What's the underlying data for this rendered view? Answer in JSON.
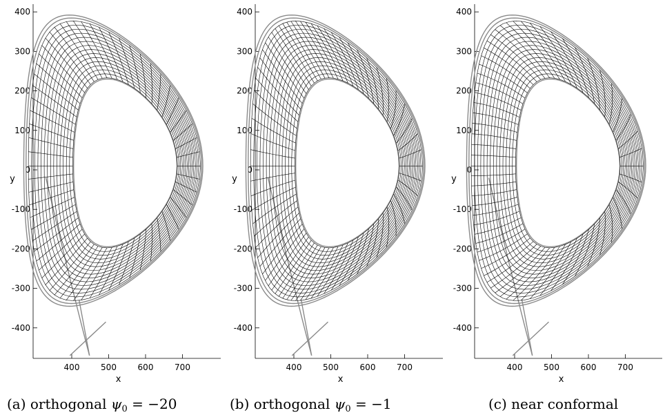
{
  "panels": [
    {
      "id": "a",
      "caption_prefix": "(a) orthogonal ",
      "caption_math": "ψ",
      "caption_sub": "0",
      "caption_suffix": " = −20",
      "mesh_style": "orthogonal-a"
    },
    {
      "id": "b",
      "caption_prefix": "(b) orthogonal ",
      "caption_math": "ψ",
      "caption_sub": "0",
      "caption_suffix": " = −1",
      "mesh_style": "orthogonal-b"
    },
    {
      "id": "c",
      "caption_prefix": "(c) near conformal",
      "caption_math": "",
      "caption_sub": "",
      "caption_suffix": "",
      "mesh_style": "conformal"
    }
  ],
  "axes": {
    "xlabel": "x",
    "ylabel": "y",
    "x_ticks": [
      "400",
      "500",
      "600",
      "700"
    ],
    "y_ticks": [
      "400",
      "300",
      "200",
      "100",
      "0",
      "-100",
      "-200",
      "-300",
      "-400"
    ]
  },
  "colors": {
    "grid": "#000000",
    "boundary": "#8a8a8a"
  }
}
